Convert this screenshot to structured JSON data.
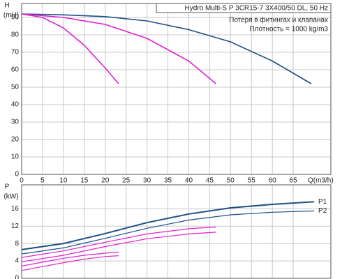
{
  "chart_data": [
    {
      "type": "line",
      "title": "Hydro Multi-S P 3CR15-7 3X400/50 DL, 50 Hz",
      "annotations": [
        "Потеря в фитингах и клапанах",
        "Плотность = 1000 kg/m3"
      ],
      "y_label": "H",
      "y_unit": "(mH)",
      "x_label": "Q(m3/h)",
      "xlim": [
        0,
        74
      ],
      "xticks": [
        0,
        5,
        10,
        15,
        20,
        25,
        30,
        35,
        40,
        45,
        50,
        55,
        60,
        65
      ],
      "ylim": [
        0,
        98
      ],
      "yticks": [
        0,
        10,
        20,
        30,
        40,
        50,
        60,
        70,
        80,
        90
      ],
      "grid": true,
      "series": [
        {
          "color": "#1c4f85",
          "x": [
            0,
            10,
            20,
            30,
            40,
            50,
            60,
            69.3
          ],
          "values": [
            92,
            91.5,
            90.5,
            88,
            83,
            76,
            65,
            52
          ]
        },
        {
          "color": "#e020d0",
          "x": [
            0,
            10,
            20,
            30,
            40,
            46.5
          ],
          "values": [
            92,
            90,
            86,
            78,
            65,
            52
          ]
        },
        {
          "color": "#e020d0",
          "x": [
            0,
            5,
            10,
            15,
            20,
            23.2
          ],
          "values": [
            92,
            90,
            84,
            74,
            61,
            52
          ]
        }
      ]
    },
    {
      "type": "line",
      "y_label": "P",
      "y_unit": "(kW)",
      "xlim": [
        0,
        74
      ],
      "ylim": [
        0,
        21.5
      ],
      "yticks": [
        0,
        4,
        8,
        12,
        16
      ],
      "grid": true,
      "series": [
        {
          "name": "P1",
          "color": "#1c4f85",
          "width": 2,
          "x": [
            0,
            10,
            20,
            30,
            40,
            50,
            60,
            70
          ],
          "values": [
            6.6,
            8,
            10.3,
            12.8,
            14.8,
            16.2,
            17,
            17.6
          ]
        },
        {
          "name": "P2",
          "color": "#1c4f85",
          "width": 1.2,
          "x": [
            0,
            10,
            20,
            30,
            40,
            50,
            60,
            70
          ],
          "values": [
            5.6,
            7,
            9.2,
            11.5,
            13.4,
            14.6,
            15.2,
            15.5
          ]
        },
        {
          "color": "#e020d0",
          "width": 1.2,
          "x": [
            0,
            10,
            20,
            30,
            40,
            46.5
          ],
          "values": [
            4.8,
            6.3,
            8.3,
            10.2,
            11.4,
            11.8
          ]
        },
        {
          "color": "#e020d0",
          "width": 1.2,
          "x": [
            0,
            10,
            20,
            30,
            40,
            46.5
          ],
          "values": [
            3.8,
            5.3,
            7.3,
            9.1,
            10.2,
            10.6
          ]
        },
        {
          "color": "#e020d0",
          "width": 1.2,
          "x": [
            0,
            5,
            10,
            15,
            20,
            23.2
          ],
          "values": [
            2.8,
            3.7,
            4.6,
            5.3,
            5.8,
            6
          ]
        },
        {
          "color": "#e020d0",
          "width": 1.2,
          "x": [
            0,
            5,
            10,
            15,
            20,
            23.2
          ],
          "values": [
            1.8,
            2.7,
            3.6,
            4.4,
            5,
            5.2
          ]
        }
      ]
    }
  ]
}
